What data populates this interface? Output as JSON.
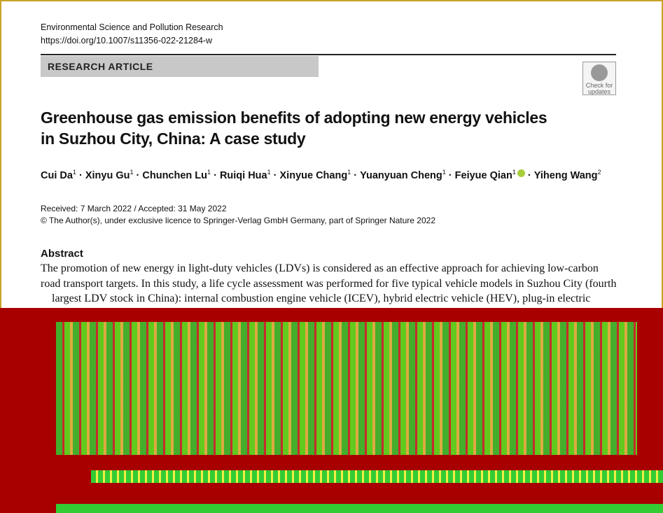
{
  "header": {
    "journal": "Environmental Science and Pollution Research",
    "doi": "https://doi.org/10.1007/s11356-022-21284-w",
    "article_type": "RESEARCH ARTICLE",
    "check": [
      "Check for",
      "updates"
    ]
  },
  "title": [
    "Greenhouse gas emission benefits of adopting new energy vehicles",
    "in Suzhou City, China: A case study"
  ],
  "authors": [
    {
      "name": "Cui Da",
      "aff": "1"
    },
    {
      "name": "Xinyu Gu",
      "aff": "1"
    },
    {
      "name": "Chunchen Lu",
      "aff": "1"
    },
    {
      "name": "Ruiqi Hua",
      "aff": "1"
    },
    {
      "name": "Xinyue Chang",
      "aff": "1"
    },
    {
      "name": "Yuanyuan Cheng",
      "aff": "1"
    },
    {
      "name": "Feiyue Qian",
      "aff": "1"
    },
    {
      "name": "Yiheng Wang",
      "aff": "2"
    }
  ],
  "received": "Received: 7 March 2022 / Accepted: 31 May 2022",
  "copyright": "© The Author(s), under exclusive licence to Springer-Verlag GmbH Germany, part of Springer Nature 2022",
  "abstract": {
    "heading": "Abstract",
    "lines": [
      "The promotion of new energy in light-duty vehicles (LDVs) is considered as an effective approach for achieving low-carbon",
      "road transport targets. In this study, a life cycle assessment was performed for five typical vehicle models in Suzhou City (fourth",
      "largest LDV stock in China): internal combustion engine vehicle (ICEV), hybrid electric vehicle (HEV), plug-in electric"
    ]
  }
}
